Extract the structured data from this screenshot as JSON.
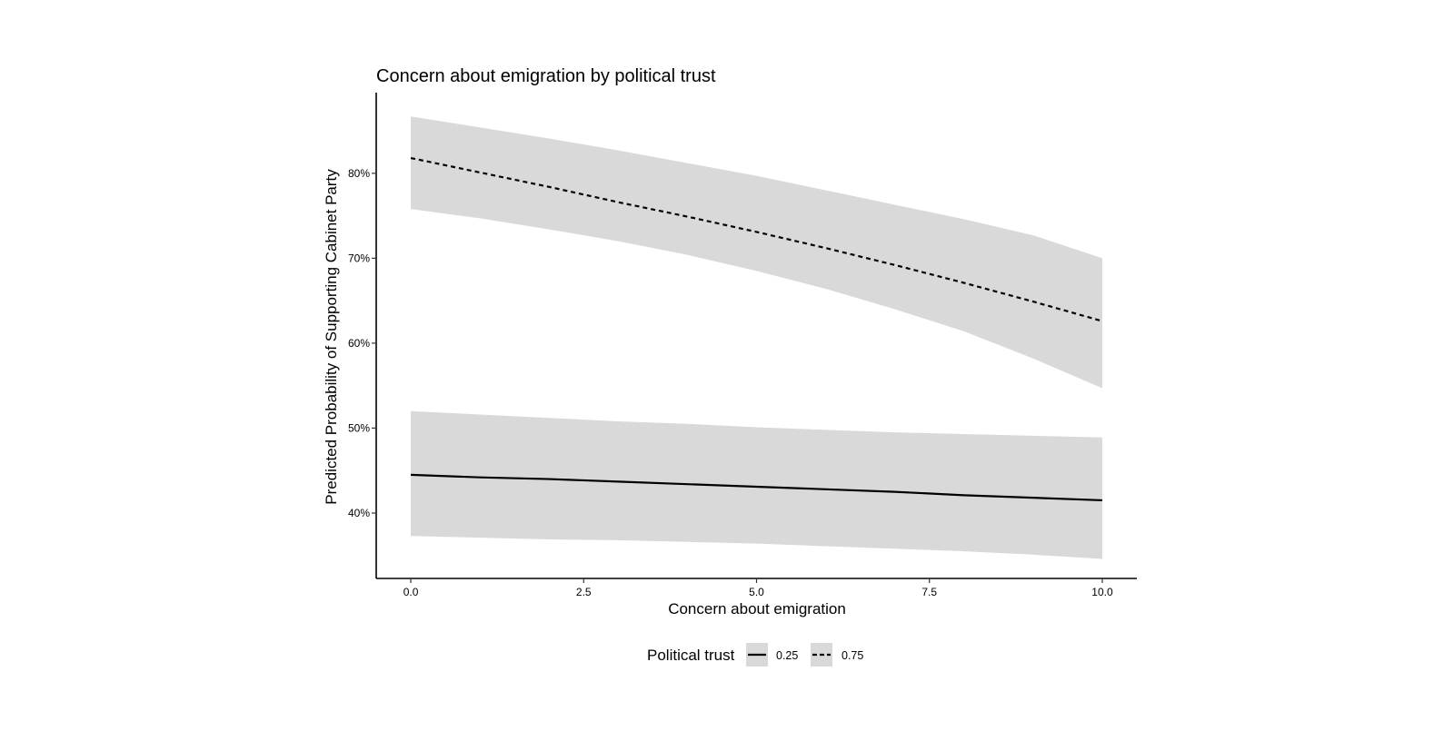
{
  "chart_data": {
    "type": "line",
    "title": "Concern about emigration by political trust",
    "xlabel": "Concern about emigration",
    "ylabel": "Predicted Probability of Supporting Cabinet Party",
    "xlim": [
      -0.5,
      10.5
    ],
    "ylim": [
      32.3,
      89.5
    ],
    "x_ticks": [
      0,
      2.5,
      5,
      7.5,
      10
    ],
    "x_tick_labels": [
      "0.0",
      "2.5",
      "5.0",
      "7.5",
      "10.0"
    ],
    "y_ticks": [
      40,
      50,
      60,
      70,
      80
    ],
    "y_tick_labels": [
      "40%",
      "50%",
      "60%",
      "70%",
      "80%"
    ],
    "y_unit": "%",
    "grid": false,
    "legend": {
      "title": "Political trust",
      "placement": "bottom"
    },
    "ribbon_color": "#d9d9d9",
    "line_color": "#000000",
    "x": [
      0,
      1,
      2,
      3,
      4,
      5,
      6,
      7,
      8,
      9,
      10
    ],
    "series": [
      {
        "name": "0.25",
        "line_style": "solid",
        "values": [
          44.5,
          44.2,
          44.0,
          43.7,
          43.4,
          43.1,
          42.8,
          42.5,
          42.1,
          41.8,
          41.5
        ],
        "lower": [
          37.3,
          37.1,
          36.9,
          36.8,
          36.6,
          36.4,
          36.1,
          35.8,
          35.5,
          35.1,
          34.6
        ],
        "upper": [
          52.0,
          51.6,
          51.2,
          50.8,
          50.5,
          50.1,
          49.8,
          49.5,
          49.3,
          49.1,
          48.9
        ]
      },
      {
        "name": "0.75",
        "line_style": "dashed",
        "values": [
          81.8,
          80.1,
          78.4,
          76.6,
          74.9,
          73.1,
          71.2,
          69.2,
          67.1,
          64.9,
          62.6
        ],
        "lower": [
          75.8,
          74.7,
          73.4,
          72.0,
          70.4,
          68.5,
          66.4,
          64.0,
          61.4,
          58.2,
          54.7
        ],
        "upper": [
          86.7,
          85.4,
          84.1,
          82.7,
          81.2,
          79.7,
          78.0,
          76.3,
          74.6,
          72.7,
          70.0
        ]
      }
    ]
  }
}
